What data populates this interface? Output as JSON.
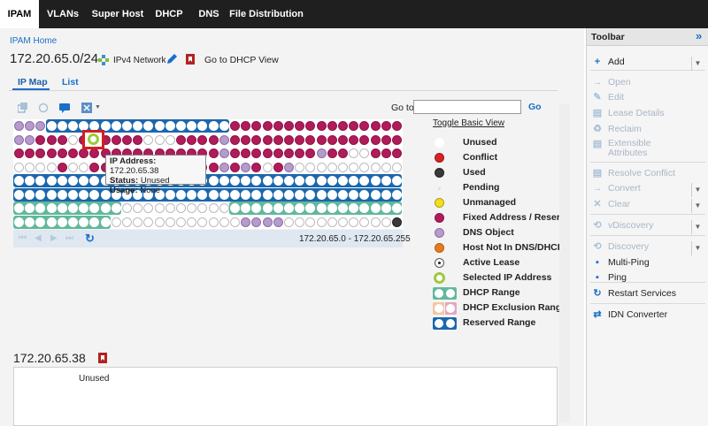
{
  "nav": {
    "tabs": [
      "IPAM",
      "VLANs",
      "Super Host",
      "DHCP",
      "DNS",
      "File Distribution"
    ],
    "active": "IPAM"
  },
  "header": {
    "breadcrumb": "IPAM Home",
    "network": "172.20.65.0/24",
    "network_type": "IPv4 Network",
    "dhcp_view_link": "Go to DHCP View"
  },
  "subtabs": [
    "IP Map",
    "List"
  ],
  "goto": {
    "label": "Go to",
    "button": "Go",
    "value": ""
  },
  "legend": {
    "toggle": "Toggle Basic View",
    "items": [
      {
        "key": "unused",
        "label": "Unused"
      },
      {
        "key": "conflict",
        "label": "Conflict"
      },
      {
        "key": "used",
        "label": "Used"
      },
      {
        "key": "pending",
        "label": "Pending"
      },
      {
        "key": "unmanaged",
        "label": "Unmanaged"
      },
      {
        "key": "fixed",
        "label": "Fixed Address / Reservation"
      },
      {
        "key": "dns",
        "label": "DNS Object"
      },
      {
        "key": "hostnot",
        "label": "Host Not In DNS/DHCP"
      },
      {
        "key": "active",
        "label": "Active Lease"
      },
      {
        "key": "selected",
        "label": "Selected IP Address"
      },
      {
        "key": "dhcprange",
        "label": "DHCP Range"
      },
      {
        "key": "exclusion",
        "label": "DHCP Exclusion Range"
      },
      {
        "key": "reserved",
        "label": "Reserved Range"
      }
    ]
  },
  "map": {
    "range_text": "172.20.65.0 - 172.20.65.255",
    "rows": [
      "DDDRRRRRRRRRRRRRRRRRFFFFFFFFFFFFFFFF",
      "DDFFFOFFFFFFUUUFFFFDFFFFFFFFFFFFFFFF",
      "FFFFFFFFFFFFFFFFFFFDFFFFFFFFDFFUUFFF",
      "UUUUFUUFFFDDFDFFFFFDFDFUFDUUUUUUUUUU",
      "RRRRRRRRRRRRRRRRRRRRRRRRRRRRRRRRRRRR",
      "RRRRRRRRRRRRRRRRRRRRRRRRRRRRRRRRRRRR",
      "GGGGGGGGGGUUUUUUUUUUGGGGGGGGGGGGGGGG",
      "GGGGGGGGGUUUUUUUUUUUUDDDDUUUUUUUUUUK"
    ],
    "colors": {
      "F": "#b01c5a",
      "D": "#b69bcb",
      "U": "#ffffff",
      "K": "#3a3a3a"
    }
  },
  "tooltip": {
    "ip_label": "IP Address:",
    "ip": "172.20.65.38",
    "status_label": "Status:",
    "status": "Unused",
    "usage_label": "Usage:",
    "usage": "None"
  },
  "detail": {
    "ip": "172.20.65.38",
    "status": "Unused"
  },
  "toolbar": {
    "title": "Toolbar",
    "items": [
      {
        "label": "Add",
        "enabled": true,
        "icon": "+",
        "name": "add"
      },
      {
        "label": "Open",
        "enabled": false,
        "icon": "→",
        "name": "open"
      },
      {
        "label": "Edit",
        "enabled": false,
        "icon": "✎",
        "name": "edit"
      },
      {
        "label": "Lease Details",
        "enabled": false,
        "icon": "▤",
        "name": "lease-details"
      },
      {
        "label": "Reclaim",
        "enabled": false,
        "icon": "♻",
        "name": "reclaim"
      },
      {
        "label": "Extensible Attributes",
        "enabled": false,
        "icon": "▤",
        "name": "extensible-attributes"
      },
      {
        "label": "Resolve Conflict",
        "enabled": false,
        "icon": "▤",
        "name": "resolve-conflict"
      },
      {
        "label": "Convert",
        "enabled": false,
        "icon": "→",
        "name": "convert"
      },
      {
        "label": "Clear",
        "enabled": false,
        "icon": "✕",
        "name": "clear"
      },
      {
        "label": "vDiscovery",
        "enabled": false,
        "icon": "⟲",
        "name": "vdiscovery"
      },
      {
        "label": "Discovery",
        "enabled": false,
        "icon": "⟲",
        "name": "discovery"
      },
      {
        "label": "Multi-Ping",
        "enabled": true,
        "icon": "▪",
        "name": "multi-ping"
      },
      {
        "label": "Ping",
        "enabled": true,
        "icon": "▪",
        "name": "ping"
      },
      {
        "label": "Restart Services",
        "enabled": true,
        "icon": "↻",
        "name": "restart-services"
      },
      {
        "label": "IDN Converter",
        "enabled": true,
        "icon": "⇄",
        "name": "idn-converter"
      }
    ]
  }
}
